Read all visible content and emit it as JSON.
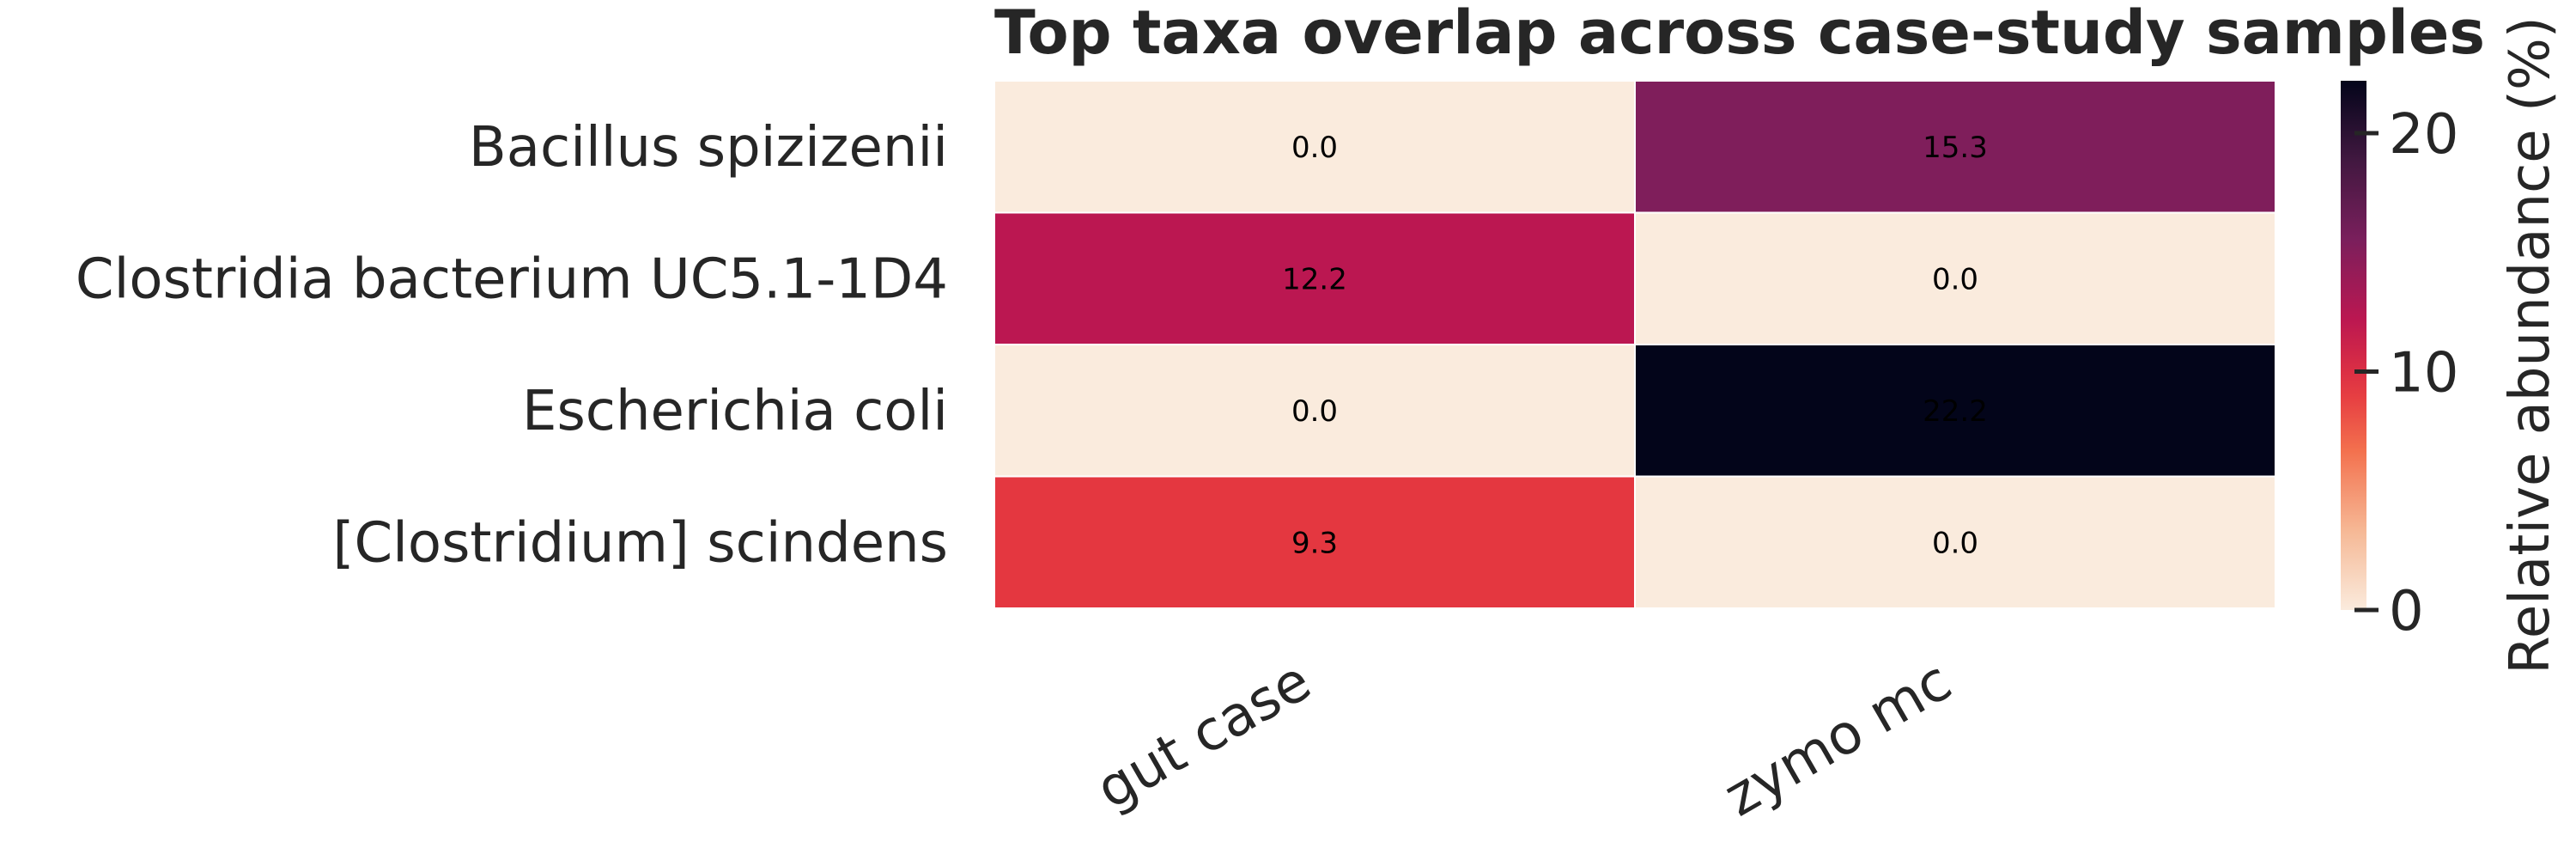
{
  "chart_data": {
    "type": "heatmap",
    "title": "Top taxa overlap across case-study samples",
    "xlabel": "",
    "ylabel": "",
    "rows": [
      "Bacillus spizizenii",
      "Clostridia bacterium UC5.1-1D4",
      "Escherichia coli",
      "[Clostridium] scindens"
    ],
    "columns": [
      "gut case",
      "zymo mc"
    ],
    "values": [
      [
        0.0,
        15.3
      ],
      [
        12.2,
        0.0
      ],
      [
        0.0,
        22.2
      ],
      [
        9.3,
        0.0
      ]
    ],
    "value_labels": [
      [
        "0.0",
        "15.3"
      ],
      [
        "12.2",
        "0.0"
      ],
      [
        "0.0",
        "22.2"
      ],
      [
        "9.3",
        "0.0"
      ]
    ],
    "colorbar": {
      "label": "Relative abundance (%)",
      "vmin": 0,
      "vmax": 22.2,
      "ticks": [
        0,
        10,
        20
      ],
      "tick_labels": [
        "0",
        "10",
        "20"
      ],
      "colormap": "rocket_r"
    },
    "colors": {
      "text_dark": "#262626",
      "annotation": "#000000",
      "tick": "#262626"
    }
  }
}
